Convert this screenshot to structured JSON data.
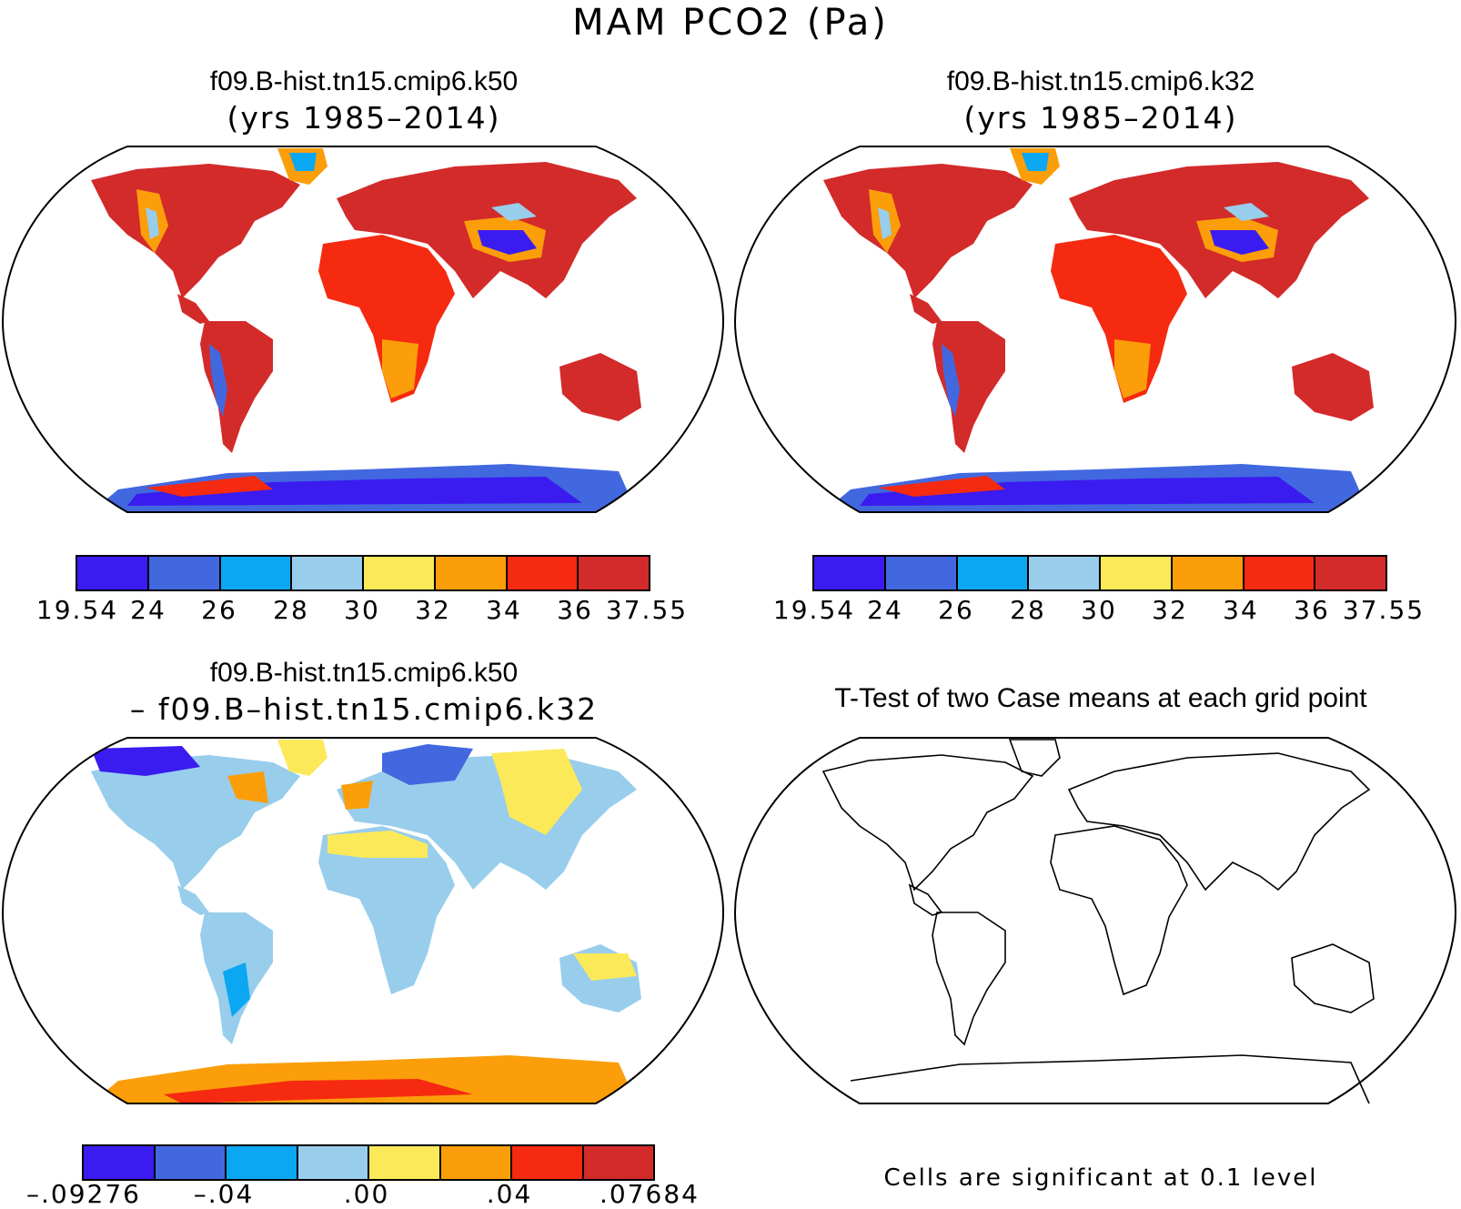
{
  "figure": {
    "title": "MAM PCO2 (Pa)"
  },
  "panels": [
    {
      "id": "case1",
      "title": "f09.B-hist.tn15.cmip6.k50",
      "subtitle": "(yrs 1985–2014)",
      "colorbar": {
        "colors": [
          "#3a1cf0",
          "#4268e0",
          "#0ca7f2",
          "#98cdec",
          "#fbe95a",
          "#fb9e0a",
          "#f52a10",
          "#d32a2a"
        ],
        "tick_labels": [
          "19.54",
          "24",
          "26",
          "28",
          "30",
          "32",
          "34",
          "36",
          "37.55"
        ]
      }
    },
    {
      "id": "case2",
      "title": "f09.B-hist.tn15.cmip6.k32",
      "subtitle": "(yrs 1985–2014)",
      "colorbar": {
        "colors": [
          "#3a1cf0",
          "#4268e0",
          "#0ca7f2",
          "#98cdec",
          "#fbe95a",
          "#fb9e0a",
          "#f52a10",
          "#d32a2a"
        ],
        "tick_labels": [
          "19.54",
          "24",
          "26",
          "28",
          "30",
          "32",
          "34",
          "36",
          "37.55"
        ]
      }
    },
    {
      "id": "diff",
      "title": "f09.B-hist.tn15.cmip6.k50",
      "subtitle": "– f09.B–hist.tn15.cmip6.k32",
      "colorbar": {
        "colors": [
          "#3a1cf0",
          "#4268e0",
          "#0ca7f2",
          "#98cdec",
          "#fbe95a",
          "#fb9e0a",
          "#f52a10",
          "#d32a2a"
        ],
        "tick_labels": [
          "–.09276",
          "–.04",
          ".00",
          ".04",
          ".07684"
        ]
      }
    },
    {
      "id": "ttest",
      "title": "T-Test of two Case means at each grid point",
      "note": "Cells are significant at 0.1 level"
    }
  ]
}
